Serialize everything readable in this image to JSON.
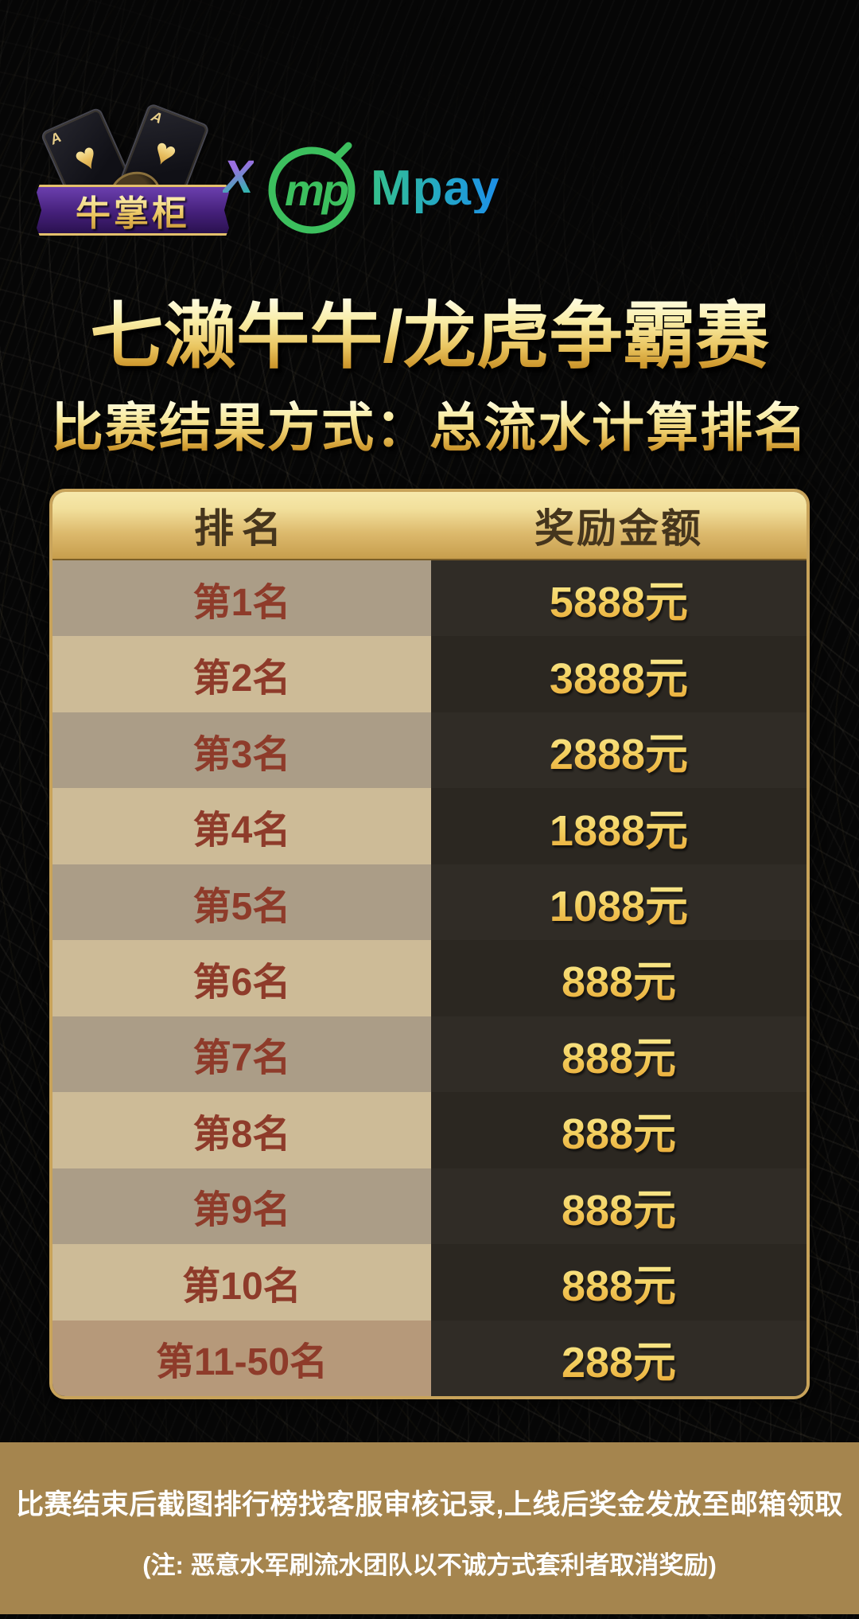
{
  "header": {
    "brand_left": {
      "name": "牛掌柜",
      "card_suit_icon": "♥",
      "card_corner": "A"
    },
    "separator": "X",
    "brand_right": {
      "monogram": "mp",
      "wordmark": "Mpay"
    }
  },
  "title": "七濑牛牛/龙虎争霸赛",
  "subtitle": "比赛结果方式：总流水计算排名",
  "prize_table": {
    "columns": {
      "rank": "排名",
      "reward": "奖励金额"
    },
    "rows": [
      {
        "rank": "第1名",
        "reward": "5888元"
      },
      {
        "rank": "第2名",
        "reward": "3888元"
      },
      {
        "rank": "第3名",
        "reward": "2888元"
      },
      {
        "rank": "第4名",
        "reward": "1888元"
      },
      {
        "rank": "第5名",
        "reward": "1088元"
      },
      {
        "rank": "第6名",
        "reward": "888元"
      },
      {
        "rank": "第7名",
        "reward": "888元"
      },
      {
        "rank": "第8名",
        "reward": "888元"
      },
      {
        "rank": "第9名",
        "reward": "888元"
      },
      {
        "rank": "第10名",
        "reward": "888元"
      },
      {
        "rank": "第11-50名",
        "reward": "288元"
      }
    ]
  },
  "footer": {
    "line1": "比赛结束后截图排行榜找客服审核记录,上线后奖金发放至邮箱领取",
    "line2": "(注: 恶意水军刷流水团队以不诚方式套利者取消奖励)"
  },
  "colors": {
    "background": "#060606",
    "gold_border": "#c8a35a",
    "header_bar_top": "#f2e09c",
    "header_bar_bottom": "#c79e4d",
    "header_text": "#45351d",
    "rank_text": "#8e3b2a",
    "row_left_dark": "#ab9d87",
    "row_left_light": "#cdbb97",
    "row_left_last": "#b6997a",
    "row_right_dark": "#302c26",
    "row_right_alt": "#2b2721",
    "amount_top": "#fbf29c",
    "amount_bottom": "#e8a634",
    "footer_bg": "#a5854e",
    "footer_text": "#ffffff",
    "mpay_green": "#3cbf5e",
    "mpay_blue": "#1d8fe8",
    "ribbon_purple": "#45207a",
    "x_purple": "#9a6fe0",
    "x_teal": "#34b4b0"
  }
}
